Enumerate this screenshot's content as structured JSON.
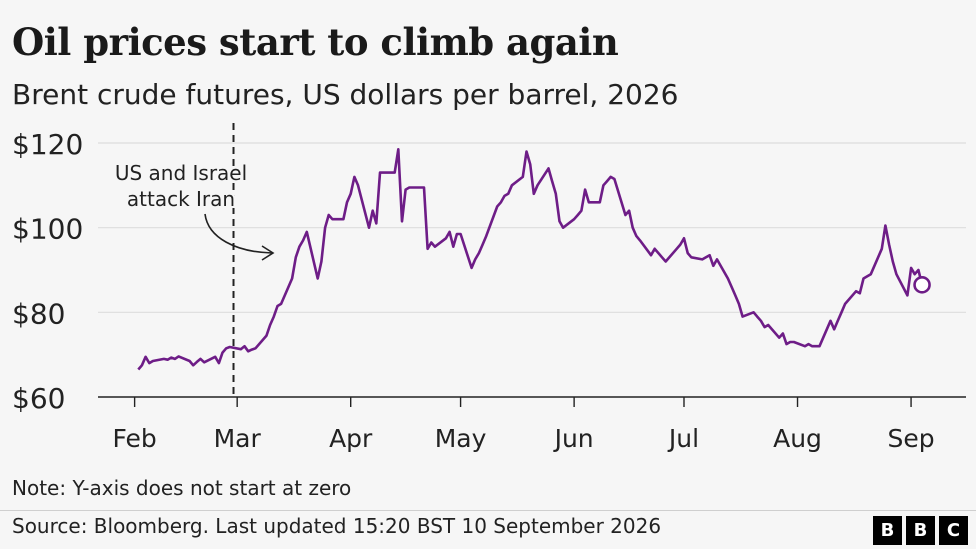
{
  "header": {
    "title": "Oil prices start to climb again",
    "subtitle": "Brent crude futures, US dollars per barrel, 2026"
  },
  "footer": {
    "note": "Note: Y-axis does not start at zero",
    "source": "Source: Bloomberg. Last updated 15:20 BST 10 September 2026",
    "logo_letters": [
      "B",
      "B",
      "C"
    ]
  },
  "colors": {
    "line": "#6e1d87",
    "grid": "#dcdcdc",
    "axis": "#222222",
    "background": "#f6f6f6"
  },
  "chart_data": {
    "type": "line",
    "title": "Oil prices start to climb again",
    "subtitle": "Brent crude futures, US dollars per barrel, 2026",
    "xlabel": "",
    "ylabel": "",
    "ylim": [
      60,
      120
    ],
    "xlim": [
      "2026-01-22",
      "2026-09-16"
    ],
    "y_ticks": [
      60,
      80,
      100,
      120
    ],
    "y_tick_labels": [
      "$60",
      "$80",
      "$100",
      "$120"
    ],
    "x_ticks": [
      "2026-02-01",
      "2026-03-01",
      "2026-04-01",
      "2026-05-01",
      "2026-06-01",
      "2026-07-01",
      "2026-08-01",
      "2026-09-01"
    ],
    "x_tick_labels": [
      "Feb",
      "Mar",
      "Apr",
      "May",
      "Jun",
      "Jul",
      "Aug",
      "Sep"
    ],
    "grid": "horizontal",
    "annotation": {
      "lines": [
        "US and Israel",
        "attack Iran"
      ],
      "date": "2026-02-28",
      "style": "dashed vertical line"
    },
    "end_marker": "hollow circle on last value",
    "series": [
      {
        "points": [
          [
            "2026-02-02",
            66.5
          ],
          [
            "2026-02-03",
            67.5
          ],
          [
            "2026-02-04",
            69.5
          ],
          [
            "2026-02-05",
            68
          ],
          [
            "2026-02-06",
            68.5
          ],
          [
            "2026-02-09",
            69
          ],
          [
            "2026-02-10",
            68.8
          ],
          [
            "2026-02-11",
            69.3
          ],
          [
            "2026-02-12",
            69
          ],
          [
            "2026-02-13",
            69.6
          ],
          [
            "2026-02-16",
            68.5
          ],
          [
            "2026-02-17",
            67.5
          ],
          [
            "2026-02-18",
            68.3
          ],
          [
            "2026-02-19",
            69
          ],
          [
            "2026-02-20",
            68.2
          ],
          [
            "2026-02-23",
            69.5
          ],
          [
            "2026-02-24",
            68
          ],
          [
            "2026-02-25",
            70.5
          ],
          [
            "2026-02-26",
            71.5
          ],
          [
            "2026-02-27",
            71.8
          ],
          [
            "2026-03-02",
            71.3
          ],
          [
            "2026-03-03",
            72
          ],
          [
            "2026-03-04",
            70.8
          ],
          [
            "2026-03-05",
            71.2
          ],
          [
            "2026-03-06",
            71.5
          ],
          [
            "2026-03-09",
            74.5
          ],
          [
            "2026-03-10",
            77
          ],
          [
            "2026-03-11",
            79
          ],
          [
            "2026-03-12",
            81.5
          ],
          [
            "2026-03-13",
            82
          ],
          [
            "2026-03-16",
            88
          ],
          [
            "2026-03-17",
            93
          ],
          [
            "2026-03-18",
            95.5
          ],
          [
            "2026-03-19",
            97
          ],
          [
            "2026-03-20",
            99
          ],
          [
            "2026-03-23",
            88
          ],
          [
            "2026-03-24",
            92
          ],
          [
            "2026-03-25",
            100
          ],
          [
            "2026-03-26",
            103
          ],
          [
            "2026-03-27",
            102
          ],
          [
            "2026-03-30",
            102
          ],
          [
            "2026-03-31",
            106
          ],
          [
            "2026-04-01",
            108
          ],
          [
            "2026-04-02",
            112
          ],
          [
            "2026-04-03",
            110
          ],
          [
            "2026-04-06",
            100
          ],
          [
            "2026-04-07",
            104
          ],
          [
            "2026-04-08",
            101
          ],
          [
            "2026-04-09",
            113
          ],
          [
            "2026-04-10",
            113
          ],
          [
            "2026-04-13",
            113
          ],
          [
            "2026-04-14",
            118.5
          ],
          [
            "2026-04-15",
            101.5
          ],
          [
            "2026-04-16",
            109
          ],
          [
            "2026-04-17",
            109.5
          ],
          [
            "2026-04-20",
            109.5
          ],
          [
            "2026-04-21",
            109.5
          ],
          [
            "2026-04-22",
            95
          ],
          [
            "2026-04-23",
            96.5
          ],
          [
            "2026-04-24",
            95.5
          ],
          [
            "2026-04-27",
            97.5
          ],
          [
            "2026-04-28",
            99
          ],
          [
            "2026-04-29",
            95.5
          ],
          [
            "2026-04-30",
            98.5
          ],
          [
            "2026-05-01",
            98.5
          ],
          [
            "2026-05-04",
            90.5
          ],
          [
            "2026-05-05",
            92.5
          ],
          [
            "2026-05-06",
            94
          ],
          [
            "2026-05-07",
            96
          ],
          [
            "2026-05-08",
            98
          ],
          [
            "2026-05-11",
            105
          ],
          [
            "2026-05-12",
            106
          ],
          [
            "2026-05-13",
            107.5
          ],
          [
            "2026-05-14",
            108
          ],
          [
            "2026-05-15",
            110
          ],
          [
            "2026-05-18",
            112
          ],
          [
            "2026-05-19",
            118
          ],
          [
            "2026-05-20",
            115
          ],
          [
            "2026-05-21",
            108
          ],
          [
            "2026-05-22",
            110
          ],
          [
            "2026-05-25",
            114
          ],
          [
            "2026-05-26",
            111
          ],
          [
            "2026-05-27",
            108
          ],
          [
            "2026-05-28",
            101.5
          ],
          [
            "2026-05-29",
            100
          ],
          [
            "2026-06-01",
            102
          ],
          [
            "2026-06-02",
            103
          ],
          [
            "2026-06-03",
            104
          ],
          [
            "2026-06-04",
            109
          ],
          [
            "2026-06-05",
            106
          ],
          [
            "2026-06-08",
            106
          ],
          [
            "2026-06-09",
            110
          ],
          [
            "2026-06-10",
            111
          ],
          [
            "2026-06-11",
            112
          ],
          [
            "2026-06-12",
            111.5
          ],
          [
            "2026-06-15",
            103
          ],
          [
            "2026-06-16",
            104
          ],
          [
            "2026-06-17",
            100
          ],
          [
            "2026-06-18",
            98
          ],
          [
            "2026-06-19",
            97
          ],
          [
            "2026-06-22",
            93.5
          ],
          [
            "2026-06-23",
            95
          ],
          [
            "2026-06-24",
            94
          ],
          [
            "2026-06-25",
            93
          ],
          [
            "2026-06-26",
            92
          ],
          [
            "2026-06-29",
            95
          ],
          [
            "2026-06-30",
            96
          ],
          [
            "2026-07-01",
            97.5
          ],
          [
            "2026-07-02",
            94
          ],
          [
            "2026-07-03",
            93
          ],
          [
            "2026-07-06",
            92.5
          ],
          [
            "2026-07-07",
            93
          ],
          [
            "2026-07-08",
            93.5
          ],
          [
            "2026-07-09",
            91
          ],
          [
            "2026-07-10",
            92.5
          ],
          [
            "2026-07-13",
            88
          ],
          [
            "2026-07-14",
            86
          ],
          [
            "2026-07-15",
            84
          ],
          [
            "2026-07-16",
            82
          ],
          [
            "2026-07-17",
            79
          ],
          [
            "2026-07-20",
            80
          ],
          [
            "2026-07-21",
            79
          ],
          [
            "2026-07-22",
            78
          ],
          [
            "2026-07-23",
            76.5
          ],
          [
            "2026-07-24",
            77
          ],
          [
            "2026-07-27",
            74
          ],
          [
            "2026-07-28",
            75
          ],
          [
            "2026-07-29",
            72.5
          ],
          [
            "2026-07-30",
            73
          ],
          [
            "2026-07-31",
            73
          ],
          [
            "2026-08-03",
            72
          ],
          [
            "2026-08-04",
            72.5
          ],
          [
            "2026-08-05",
            72
          ],
          [
            "2026-08-06",
            72
          ],
          [
            "2026-08-07",
            72
          ],
          [
            "2026-08-10",
            78
          ],
          [
            "2026-08-11",
            76
          ],
          [
            "2026-08-12",
            78
          ],
          [
            "2026-08-13",
            80
          ],
          [
            "2026-08-14",
            82
          ],
          [
            "2026-08-17",
            85
          ],
          [
            "2026-08-18",
            84.5
          ],
          [
            "2026-08-19",
            88
          ],
          [
            "2026-08-20",
            88.5
          ],
          [
            "2026-08-21",
            89
          ],
          [
            "2026-08-24",
            95
          ],
          [
            "2026-08-25",
            100.5
          ],
          [
            "2026-08-26",
            96
          ],
          [
            "2026-08-27",
            92
          ],
          [
            "2026-08-28",
            89
          ],
          [
            "2026-08-31",
            84
          ],
          [
            "2026-09-01",
            90.5
          ],
          [
            "2026-09-02",
            89
          ],
          [
            "2026-09-03",
            90
          ],
          [
            "2026-09-04",
            86.5
          ]
        ]
      }
    ]
  }
}
